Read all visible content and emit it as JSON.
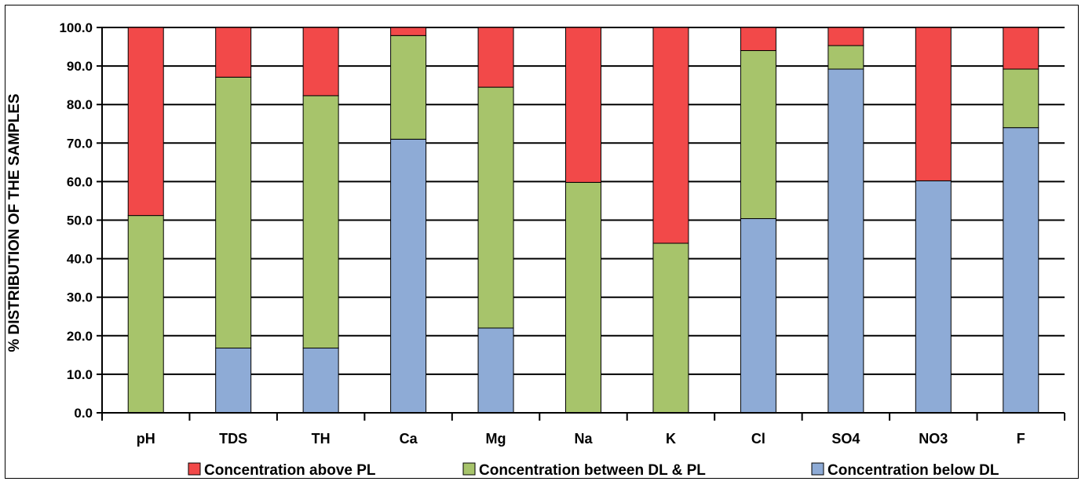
{
  "chart_data": {
    "type": "stacked-bar",
    "title": "",
    "xlabel": "",
    "ylabel": "% DISTRIBUTION OF  THE SAMPLES",
    "ylim": [
      0,
      100
    ],
    "ytick_step": 10,
    "grid": true,
    "legend": "bottom",
    "categories": [
      "pH",
      "TDS",
      "TH",
      "Ca",
      "Mg",
      "Na",
      "K",
      "Cl",
      "SO4",
      "NO3",
      "F"
    ],
    "series": [
      {
        "name": "Concentration below DL",
        "color": "#8EABD6",
        "values": [
          0,
          16.8,
          16.8,
          71.0,
          22.0,
          0,
          0,
          50.4,
          89.2,
          60.2,
          74.0
        ]
      },
      {
        "name": "Concentration between DL & PL",
        "color": "#A7C46B",
        "values": [
          51.2,
          70.3,
          65.5,
          26.9,
          62.5,
          59.8,
          44.0,
          43.6,
          6.1,
          0,
          15.2
        ]
      },
      {
        "name": "Concentration above PL",
        "color": "#F24949",
        "values": [
          48.8,
          12.9,
          17.7,
          2.1,
          15.5,
          40.2,
          56.0,
          6.0,
          4.7,
          39.8,
          10.8
        ]
      }
    ],
    "legend_order": [
      "Concentration above PL",
      "Concentration between DL & PL",
      "Concentration below DL"
    ]
  }
}
